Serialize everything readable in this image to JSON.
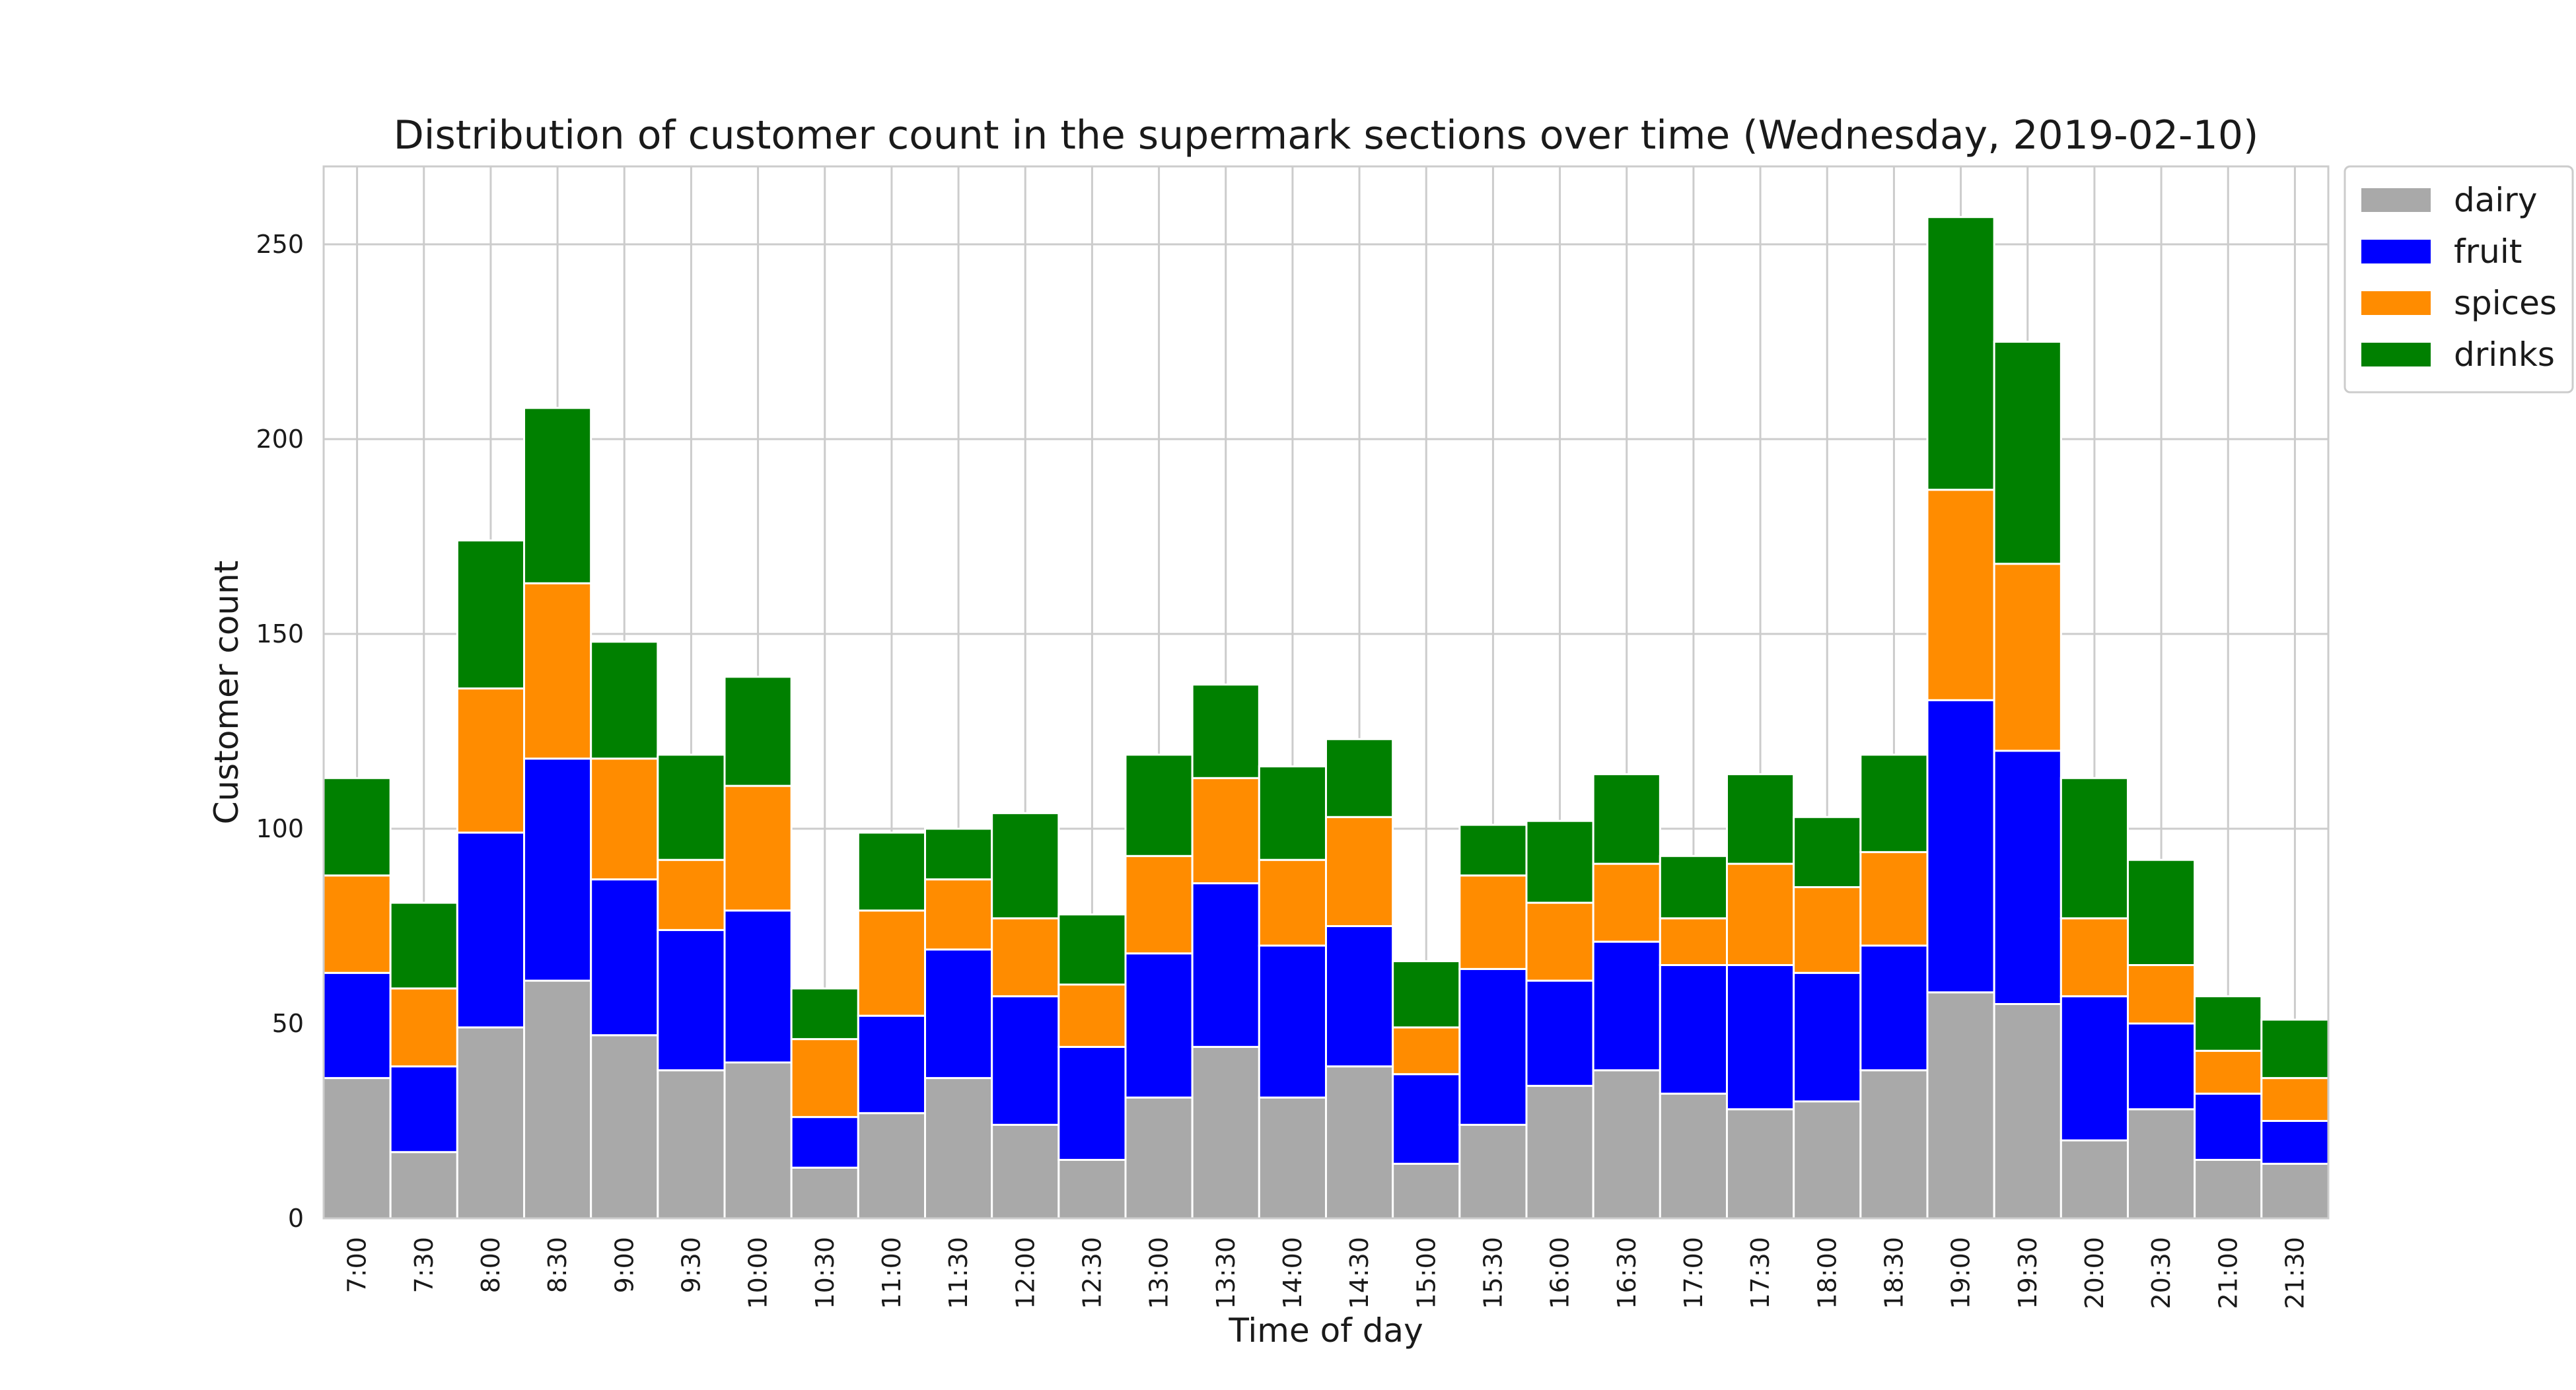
{
  "chart_data": {
    "type": "bar",
    "stacked": true,
    "title": "Distribution of customer count in the supermark sections over time (Wednesday, 2019-02-10)",
    "xlabel": "Time of day",
    "ylabel": "Customer count",
    "ylim": [
      0,
      270
    ],
    "yticks": [
      "0",
      "50",
      "100",
      "150",
      "200",
      "250"
    ],
    "grid": true,
    "legend_position": "outside top-right",
    "categories": [
      "7:00",
      "7:30",
      "8:00",
      "8:30",
      "9:00",
      "9:30",
      "10:00",
      "10:30",
      "11:00",
      "11:30",
      "12:00",
      "12:30",
      "13:00",
      "13:30",
      "14:00",
      "14:30",
      "15:00",
      "15:30",
      "16:00",
      "16:30",
      "17:00",
      "17:30",
      "18:00",
      "18:30",
      "19:00",
      "19:30",
      "20:00",
      "20:30",
      "21:00",
      "21:30"
    ],
    "series": [
      {
        "name": "dairy",
        "color": "#a9a9a9",
        "values": [
          36,
          17,
          49,
          61,
          47,
          38,
          40,
          13,
          27,
          36,
          24,
          15,
          31,
          44,
          31,
          39,
          14,
          24,
          34,
          38,
          32,
          28,
          30,
          38,
          58,
          55,
          20,
          28,
          15,
          14
        ]
      },
      {
        "name": "fruit",
        "color": "#0000ff",
        "values": [
          27,
          22,
          50,
          57,
          40,
          36,
          39,
          13,
          25,
          33,
          33,
          29,
          37,
          42,
          39,
          36,
          23,
          40,
          27,
          33,
          33,
          37,
          33,
          32,
          75,
          65,
          37,
          22,
          17,
          11
        ]
      },
      {
        "name": "spices",
        "color": "#ff8c00",
        "values": [
          25,
          20,
          37,
          45,
          31,
          18,
          32,
          20,
          27,
          18,
          20,
          16,
          25,
          27,
          22,
          28,
          12,
          24,
          20,
          20,
          12,
          26,
          22,
          24,
          54,
          48,
          20,
          15,
          11,
          11
        ]
      },
      {
        "name": "drinks",
        "color": "#008000",
        "values": [
          25,
          22,
          38,
          45,
          30,
          27,
          28,
          13,
          20,
          13,
          27,
          18,
          26,
          24,
          24,
          20,
          17,
          13,
          21,
          23,
          16,
          23,
          18,
          25,
          70,
          57,
          36,
          27,
          14,
          15
        ]
      }
    ]
  }
}
